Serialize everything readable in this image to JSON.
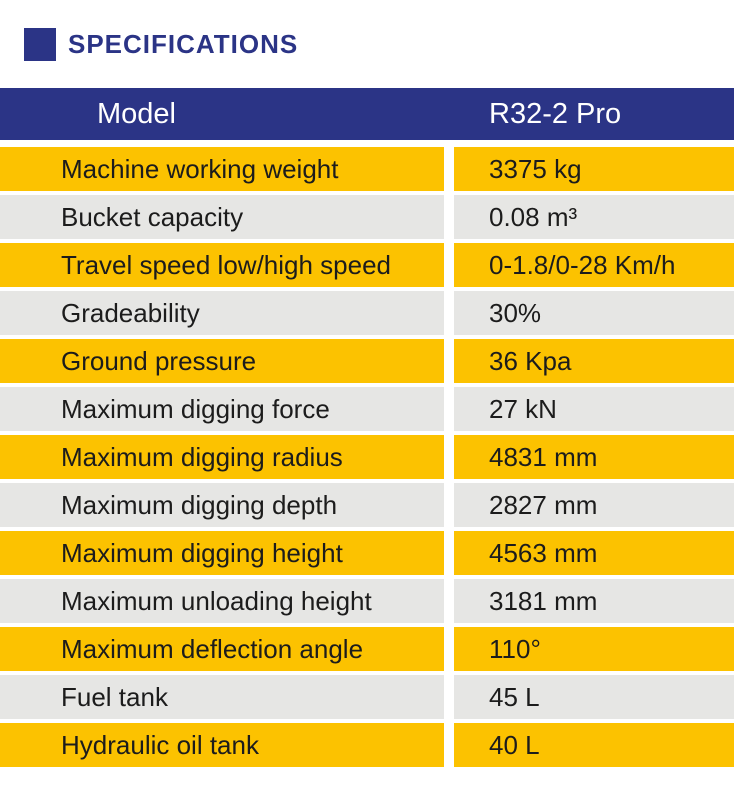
{
  "section": {
    "title": "SPECIFICATIONS"
  },
  "colors": {
    "accent": "#2b3486",
    "header_bg": "#2b3486",
    "header_text": "#ffffff",
    "row_yellow": "#fcc200",
    "row_gray": "#e6e6e4",
    "row_text": "#1c1c1c",
    "page_bg": "#ffffff"
  },
  "table": {
    "header": {
      "col1": "Model",
      "col2": "R32-2 Pro"
    },
    "rows": [
      {
        "label": "Machine working weight",
        "value": "3375 kg"
      },
      {
        "label": "Bucket capacity",
        "value": "0.08 m³"
      },
      {
        "label": "Travel speed low/high speed",
        "value": "0-1.8/0-28 Km/h"
      },
      {
        "label": "Gradeability",
        "value": "30%"
      },
      {
        "label": "Ground pressure",
        "value": "36 Kpa"
      },
      {
        "label": "Maximum digging force",
        "value": "27 kN"
      },
      {
        "label": "Maximum digging radius",
        "value": "4831 mm"
      },
      {
        "label": "Maximum digging depth",
        "value": "2827 mm"
      },
      {
        "label": "Maximum digging height",
        "value": "4563 mm"
      },
      {
        "label": "Maximum unloading height",
        "value": "3181 mm"
      },
      {
        "label": "Maximum deflection angle",
        "value": "110°"
      },
      {
        "label": "Fuel tank",
        "value": "45 L"
      },
      {
        "label": "Hydraulic oil tank",
        "value": "40 L"
      }
    ]
  }
}
